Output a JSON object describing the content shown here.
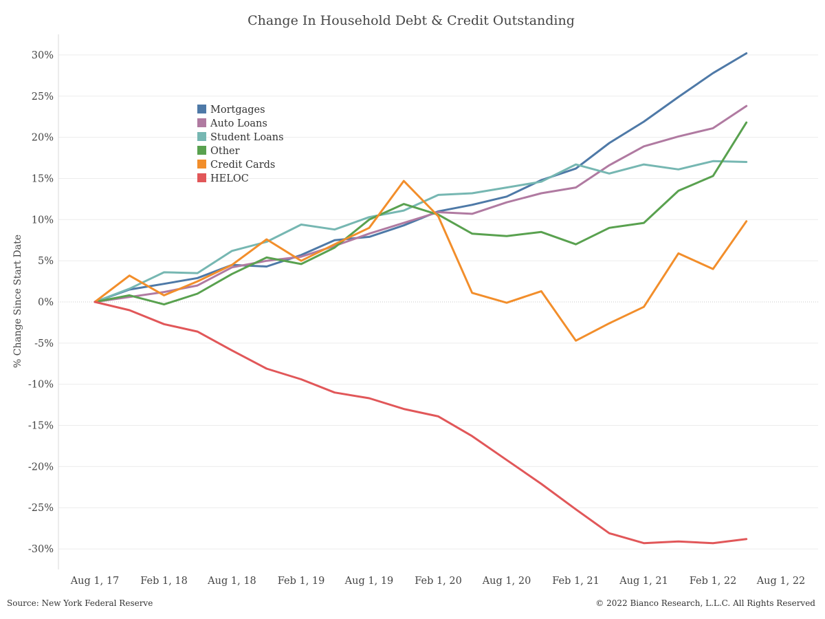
{
  "footer": {
    "source": "Source: New York Federal Reserve",
    "copyright": "© 2022 Bianco Research, L.L.C. All Rights Reserved"
  },
  "chart_data": {
    "type": "line",
    "title": "Change In Household Debt & Credit Outstanding",
    "xlabel": "",
    "ylabel": "% Change Since Start Date",
    "ylim": [
      -32.5,
      32.5
    ],
    "yticks": [
      30,
      25,
      20,
      15,
      10,
      5,
      0,
      -5,
      -10,
      -15,
      -20,
      -25,
      -30
    ],
    "ytick_labels": [
      "30%",
      "25%",
      "20%",
      "15%",
      "10%",
      "5%",
      "0%",
      "-5%",
      "-10%",
      "-15%",
      "-20%",
      "-25%",
      "-30%"
    ],
    "x_tick_labels": [
      "Aug 1, 17",
      "Feb 1, 18",
      "Aug 1, 18",
      "Feb 1, 19",
      "Aug 1, 19",
      "Feb 1, 20",
      "Aug 1, 20",
      "Feb 1, 21",
      "Aug 1, 21",
      "Feb 1, 22",
      "Aug 1, 22"
    ],
    "x": [
      "2017-08-01",
      "2017-11-01",
      "2018-02-01",
      "2018-05-01",
      "2018-08-01",
      "2018-11-01",
      "2019-02-01",
      "2019-05-01",
      "2019-08-01",
      "2019-11-01",
      "2020-02-01",
      "2020-05-01",
      "2020-08-01",
      "2020-11-01",
      "2021-02-01",
      "2021-05-01",
      "2021-08-01",
      "2021-11-01",
      "2022-02-01",
      "2022-05-01",
      "2022-08-01"
    ],
    "grid": true,
    "legend_position": "top-left",
    "series": [
      {
        "name": "Mortgages",
        "color": "#4e79a7",
        "values": [
          0,
          1.5,
          2.2,
          2.9,
          4.5,
          4.3,
          5.7,
          7.5,
          7.9,
          9.3,
          11.0,
          11.8,
          12.8,
          14.8,
          16.2,
          19.3,
          21.9,
          24.9,
          27.8,
          30.2,
          null
        ]
      },
      {
        "name": "Auto Loans",
        "color": "#b07aa1",
        "values": [
          0,
          0.6,
          1.2,
          2.0,
          4.2,
          5.0,
          5.5,
          6.8,
          8.3,
          9.6,
          10.9,
          10.7,
          12.1,
          13.2,
          13.9,
          16.6,
          18.9,
          20.1,
          21.1,
          23.8,
          null
        ]
      },
      {
        "name": "Student Loans",
        "color": "#76b7b2",
        "values": [
          0,
          1.6,
          3.6,
          3.5,
          6.2,
          7.3,
          9.4,
          8.8,
          10.3,
          11.1,
          13.0,
          13.2,
          13.9,
          14.6,
          16.7,
          15.6,
          16.7,
          16.1,
          17.1,
          17.0,
          null
        ]
      },
      {
        "name": "Other",
        "color": "#59a14f",
        "values": [
          0,
          0.8,
          -0.3,
          1.0,
          3.4,
          5.4,
          4.6,
          6.6,
          10.0,
          11.9,
          10.6,
          8.3,
          8.0,
          8.5,
          7.0,
          9.0,
          9.6,
          13.5,
          15.3,
          21.8,
          null
        ]
      },
      {
        "name": "Credit Cards",
        "color": "#f28e2b",
        "values": [
          0,
          3.2,
          0.8,
          2.5,
          4.5,
          7.6,
          5.0,
          7.0,
          9.0,
          14.7,
          10.4,
          1.1,
          -0.1,
          1.3,
          -4.7,
          -2.6,
          -0.6,
          5.9,
          4.0,
          9.8,
          null
        ]
      },
      {
        "name": "HELOC",
        "color": "#e15759",
        "values": [
          0,
          -1.0,
          -2.7,
          -3.6,
          -5.9,
          -8.1,
          -9.4,
          -11.0,
          -11.7,
          -13.0,
          -13.9,
          -16.3,
          -19.2,
          -22.1,
          -25.2,
          -28.1,
          -29.3,
          -29.1,
          -29.3,
          -28.8,
          null
        ]
      }
    ]
  }
}
